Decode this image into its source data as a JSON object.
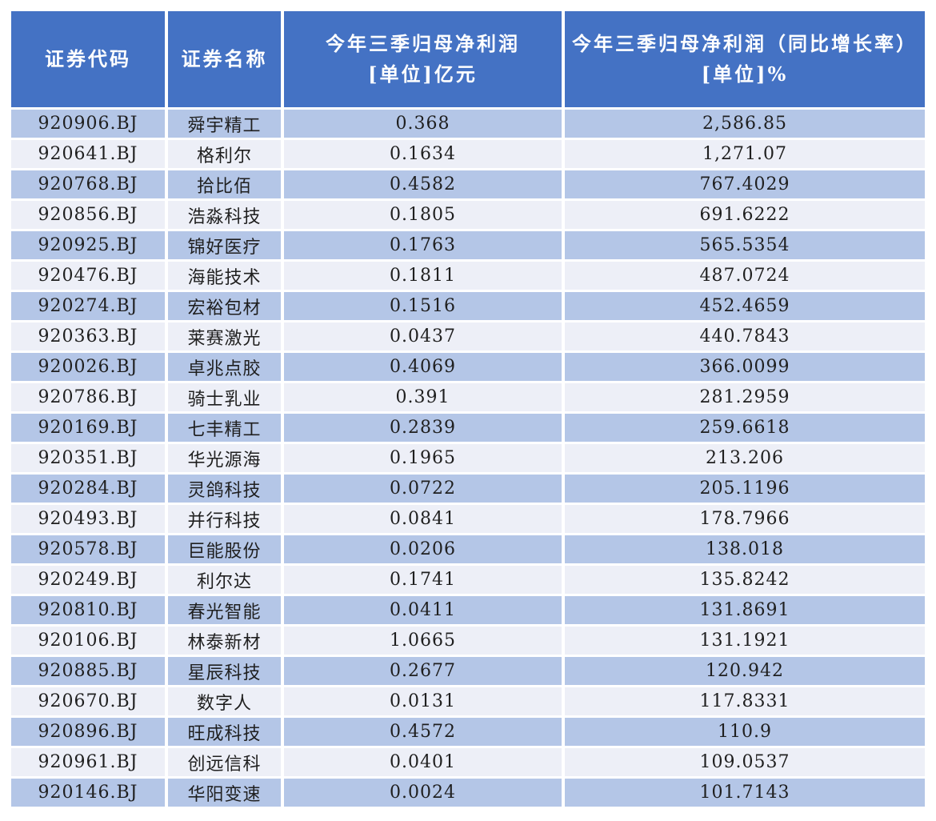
{
  "colors": {
    "header_bg": "#4472C4",
    "header_text": "#FFFFFF",
    "row_odd_bg": "#B4C6E7",
    "row_even_bg": "#EDEFF7",
    "body_text": "#1F1F1F",
    "page_bg": "#FFFFFF"
  },
  "chart_data": {
    "type": "table",
    "columns": [
      "证券代码",
      "证券名称",
      "今年三季归母净利润\n[单位]亿元",
      "今年三季归母净利润（同比增长率）\n[单位]%"
    ],
    "rows": [
      [
        "920906.BJ",
        "舜宇精工",
        "0.368",
        "2,586.85"
      ],
      [
        "920641.BJ",
        "格利尔",
        "0.1634",
        "1,271.07"
      ],
      [
        "920768.BJ",
        "拾比佰",
        "0.4582",
        "767.4029"
      ],
      [
        "920856.BJ",
        "浩淼科技",
        "0.1805",
        "691.6222"
      ],
      [
        "920925.BJ",
        "锦好医疗",
        "0.1763",
        "565.5354"
      ],
      [
        "920476.BJ",
        "海能技术",
        "0.1811",
        "487.0724"
      ],
      [
        "920274.BJ",
        "宏裕包材",
        "0.1516",
        "452.4659"
      ],
      [
        "920363.BJ",
        "莱赛激光",
        "0.0437",
        "440.7843"
      ],
      [
        "920026.BJ",
        "卓兆点胶",
        "0.4069",
        "366.0099"
      ],
      [
        "920786.BJ",
        "骑士乳业",
        "0.391",
        "281.2959"
      ],
      [
        "920169.BJ",
        "七丰精工",
        "0.2839",
        "259.6618"
      ],
      [
        "920351.BJ",
        "华光源海",
        "0.1965",
        "213.206"
      ],
      [
        "920284.BJ",
        "灵鸽科技",
        "0.0722",
        "205.1196"
      ],
      [
        "920493.BJ",
        "并行科技",
        "0.0841",
        "178.7966"
      ],
      [
        "920578.BJ",
        "巨能股份",
        "0.0206",
        "138.018"
      ],
      [
        "920249.BJ",
        "利尔达",
        "0.1741",
        "135.8242"
      ],
      [
        "920810.BJ",
        "春光智能",
        "0.0411",
        "131.8691"
      ],
      [
        "920106.BJ",
        "林泰新材",
        "1.0665",
        "131.1921"
      ],
      [
        "920885.BJ",
        "星辰科技",
        "0.2677",
        "120.942"
      ],
      [
        "920670.BJ",
        "数字人",
        "0.0131",
        "117.8331"
      ],
      [
        "920896.BJ",
        "旺成科技",
        "0.4572",
        "110.9"
      ],
      [
        "920961.BJ",
        "创远信科",
        "0.0401",
        "109.0537"
      ],
      [
        "920146.BJ",
        "华阳变速",
        "0.0024",
        "101.7143"
      ]
    ]
  }
}
